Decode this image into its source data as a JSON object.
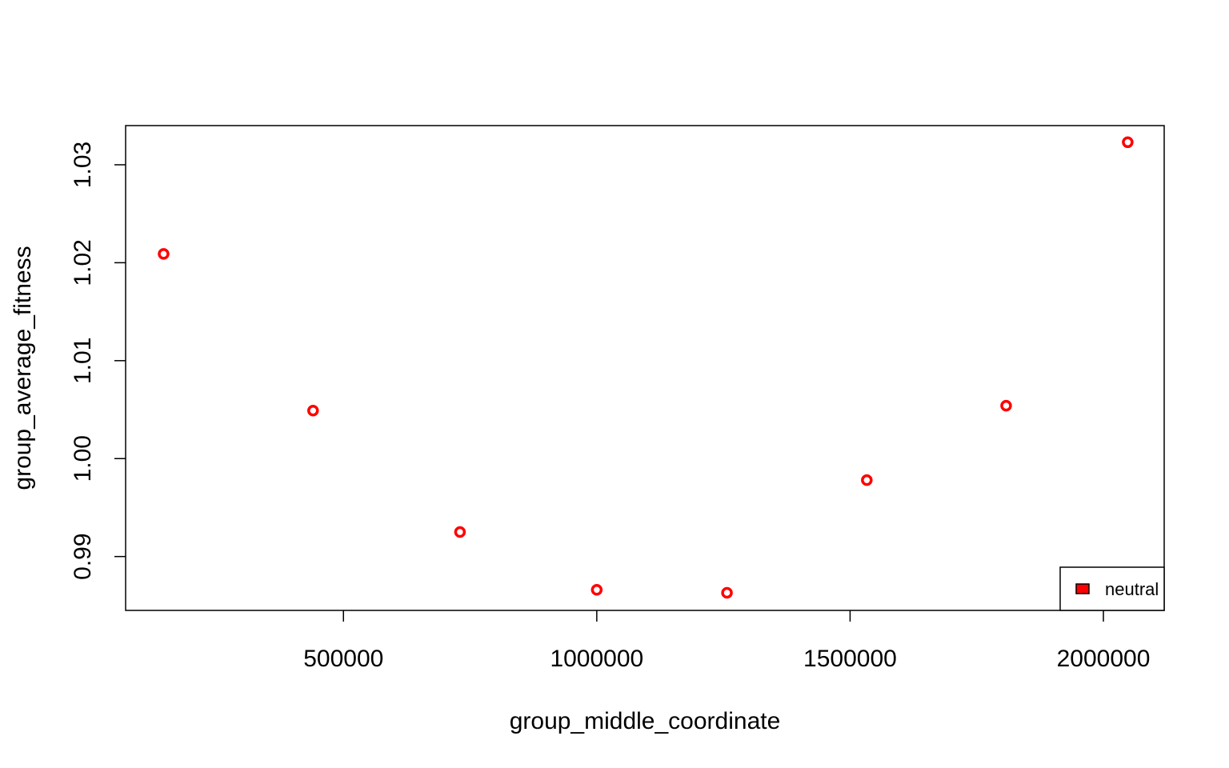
{
  "chart_data": {
    "type": "scatter",
    "title": "",
    "xlabel": "group_middle_coordinate",
    "ylabel": "group_average_fitness",
    "xlim": [
      70000,
      2120000
    ],
    "ylim": [
      0.9845,
      1.034
    ],
    "x_ticks": [
      500000,
      1000000,
      1500000,
      2000000
    ],
    "x_tick_labels": [
      "500000",
      "1000000",
      "1500000",
      "2000000"
    ],
    "y_ticks": [
      0.99,
      1.0,
      1.01,
      1.02,
      1.03
    ],
    "y_tick_labels": [
      "0.99",
      "1.00",
      "1.01",
      "1.02",
      "1.03"
    ],
    "grid": false,
    "series": [
      {
        "name": "neutral",
        "color": "#ff0000",
        "marker": "open-circle",
        "points": [
          {
            "x": 145000,
            "y": 1.0209
          },
          {
            "x": 440000,
            "y": 1.0049
          },
          {
            "x": 730000,
            "y": 0.9925
          },
          {
            "x": 1000000,
            "y": 0.9866
          },
          {
            "x": 1257000,
            "y": 0.9863
          },
          {
            "x": 1533000,
            "y": 0.9978
          },
          {
            "x": 1808000,
            "y": 1.0054
          },
          {
            "x": 2048000,
            "y": 1.0323
          }
        ]
      }
    ],
    "legend": {
      "placement": "bottom-right",
      "entries": [
        {
          "label": "neutral",
          "color": "#ff0000"
        }
      ]
    }
  }
}
